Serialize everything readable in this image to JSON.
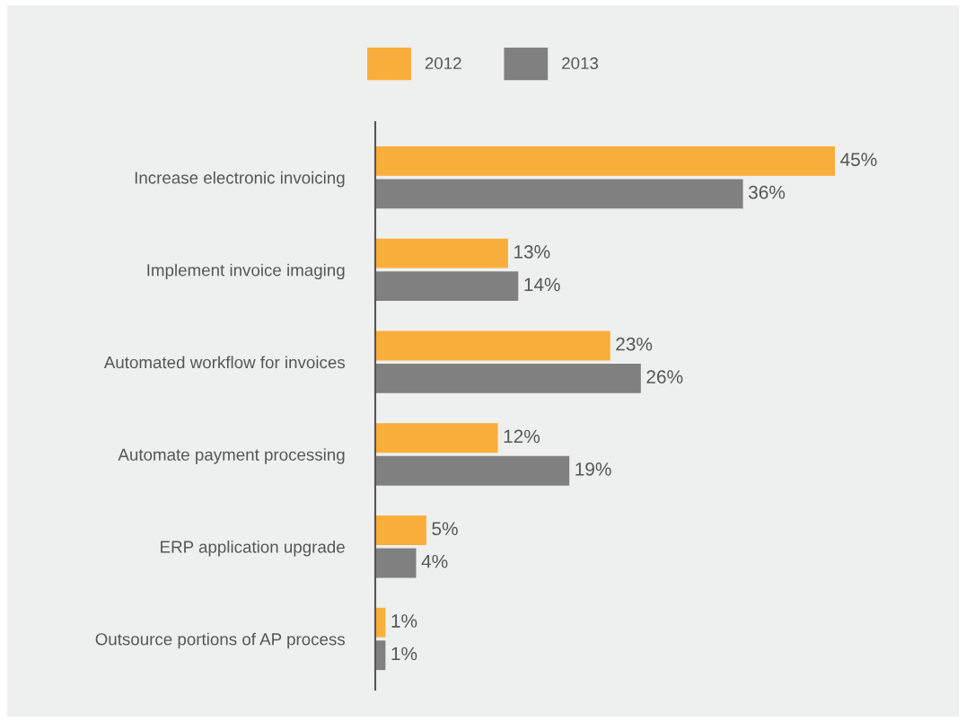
{
  "chart_data": {
    "type": "bar",
    "orientation": "horizontal",
    "categories": [
      "Increase electronic invoicing",
      "Implement invoice imaging",
      "Automated workflow for invoices",
      "Automate payment processing",
      "ERP application upgrade",
      "Outsource portions of AP process"
    ],
    "series": [
      {
        "name": "2012",
        "color": "#f9ae3b",
        "values": [
          45,
          13,
          23,
          12,
          5,
          1
        ],
        "value_labels": [
          "45%",
          "13%",
          "23%",
          "12%",
          "5%",
          "1%"
        ]
      },
      {
        "name": "2013",
        "color": "#808080",
        "values": [
          36,
          14,
          26,
          19,
          4,
          1
        ],
        "value_labels": [
          "36%",
          "14%",
          "26%",
          "19%",
          "4%",
          "1%"
        ]
      }
    ],
    "legend": "top",
    "grid": false
  }
}
